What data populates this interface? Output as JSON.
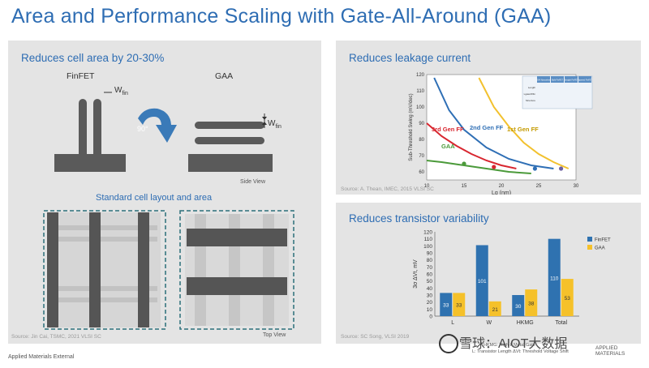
{
  "title": "Area and Performance Scaling with Gate-All-Around (GAA)",
  "left_panel": {
    "title": "Reduces cell area by 20-30%",
    "finfet_label": "FinFET",
    "gaa_label": "GAA",
    "wfin_label": "W",
    "wfin_sub": "fin",
    "rotate_label": "90°",
    "side_view": "Side View",
    "subtitle": "Standard cell layout and area",
    "top_view": "Top View",
    "source": "Source: Jin Cai, TSMC, 2021 VLSI SC"
  },
  "leak_panel": {
    "title": "Reduces leakage current",
    "source": "Source: A. Thean, IMEC, 2015 VLSI SC",
    "chart_data": {
      "type": "line",
      "xlabel": "Lg (nm)",
      "ylabel": "Sub-Threshold Swing (mV/dec)",
      "xlim": [
        10,
        30
      ],
      "ylim": [
        55,
        120
      ],
      "xticks": [
        10,
        15,
        20,
        25,
        30
      ],
      "yticks": [
        60,
        70,
        80,
        90,
        100,
        110,
        120
      ],
      "series": [
        {
          "name": "1st Gen FF",
          "color": "#f2c12e",
          "x": [
            17,
            19,
            21,
            23,
            25,
            27,
            29
          ],
          "y": [
            118,
            100,
            88,
            78,
            71,
            66,
            62
          ]
        },
        {
          "name": "2nd Gen FF",
          "color": "#2f6fb5",
          "x": [
            11,
            13,
            15,
            18,
            21,
            24,
            27
          ],
          "y": [
            118,
            98,
            86,
            75,
            68,
            64,
            62
          ]
        },
        {
          "name": "3rd Gen FF",
          "color": "#d8262f",
          "x": [
            10,
            12,
            14,
            16,
            18,
            20,
            22
          ],
          "y": [
            90,
            82,
            76,
            71,
            67,
            64,
            62
          ]
        },
        {
          "name": "GAA",
          "color": "#4b9a3a",
          "x": [
            10,
            12,
            15,
            18,
            21,
            24
          ],
          "y": [
            67,
            66,
            64,
            62,
            60,
            59
          ]
        }
      ],
      "markers": [
        {
          "x": 15,
          "y": 65,
          "color": "#4b9a3a"
        },
        {
          "x": 19,
          "y": 63,
          "color": "#d8262f"
        },
        {
          "x": 24.5,
          "y": 62,
          "color": "#2f6fb5"
        },
        {
          "x": 28,
          "y": 62,
          "color": "#6b5fa0"
        }
      ]
    },
    "inset": {
      "headers": [
        "GAA Nanosheet",
        "Bulk FinFET",
        "Straight FinFET",
        "Tapered FinFET"
      ],
      "rows": [
        "Length",
        "Lgate/Wfin",
        "Structure"
      ]
    }
  },
  "var_panel": {
    "title": "Reduces transistor variability",
    "source": "Source: SC Song, VLSI 2019",
    "note_line1": "HKMG: High-k Metal Gate",
    "note_line2": "L: Transistor Length   ΔVt: Threshold Voltage Shift",
    "chart_data": {
      "type": "bar",
      "categories": [
        "L",
        "W",
        "HKMG",
        "Total"
      ],
      "ylabel": "3σ ΔVt, mV",
      "ylim": [
        0,
        120
      ],
      "yticks": [
        0,
        10,
        20,
        30,
        40,
        50,
        60,
        70,
        80,
        90,
        100,
        110,
        120
      ],
      "series": [
        {
          "name": "FinFET",
          "color": "#2f72b0",
          "values": [
            33,
            101,
            30,
            110
          ]
        },
        {
          "name": "GAA",
          "color": "#f5c12a",
          "values": [
            33,
            21,
            38,
            53
          ]
        }
      ],
      "data_labels": [
        [
          "33",
          "101",
          "30",
          "110"
        ],
        [
          "33",
          "21",
          "38",
          "53"
        ]
      ]
    }
  },
  "footer": "Applied Materials External",
  "watermark": "雪球：AIOT大数据",
  "logo": "APPLIED MATERIALS"
}
